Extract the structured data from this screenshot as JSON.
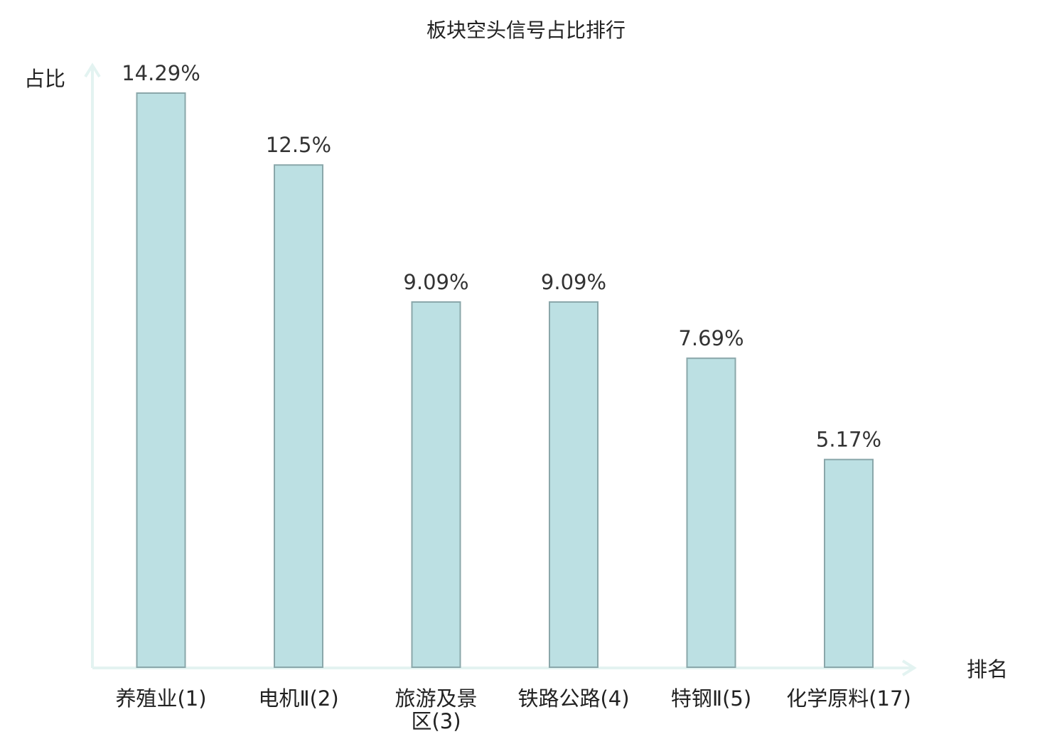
{
  "chart_data": {
    "type": "bar",
    "title": "板块空头信号占比排行",
    "xlabel": "排名",
    "ylabel": "占比",
    "categories": [
      [
        "养殖业(1)"
      ],
      [
        "电机Ⅱ(2)"
      ],
      [
        "旅游及景",
        "区(3)"
      ],
      [
        "铁路公路(4)"
      ],
      [
        "特钢Ⅱ(5)"
      ],
      [
        "化学原料(17)"
      ]
    ],
    "values": [
      14.29,
      12.5,
      9.09,
      9.09,
      7.69,
      5.17
    ],
    "value_labels": [
      "14.29%",
      "12.5%",
      "9.09%",
      "9.09%",
      "7.69%",
      "5.17%"
    ],
    "highlight_index": 5,
    "ylim": [
      0,
      14.29
    ],
    "grid": false,
    "colors": {
      "bar_fill": "#bce0e3",
      "bar_stroke": "#8aa7aa",
      "axis": "#e3f3f1",
      "highlight_label": "#dd1111",
      "text": "#222222"
    }
  }
}
